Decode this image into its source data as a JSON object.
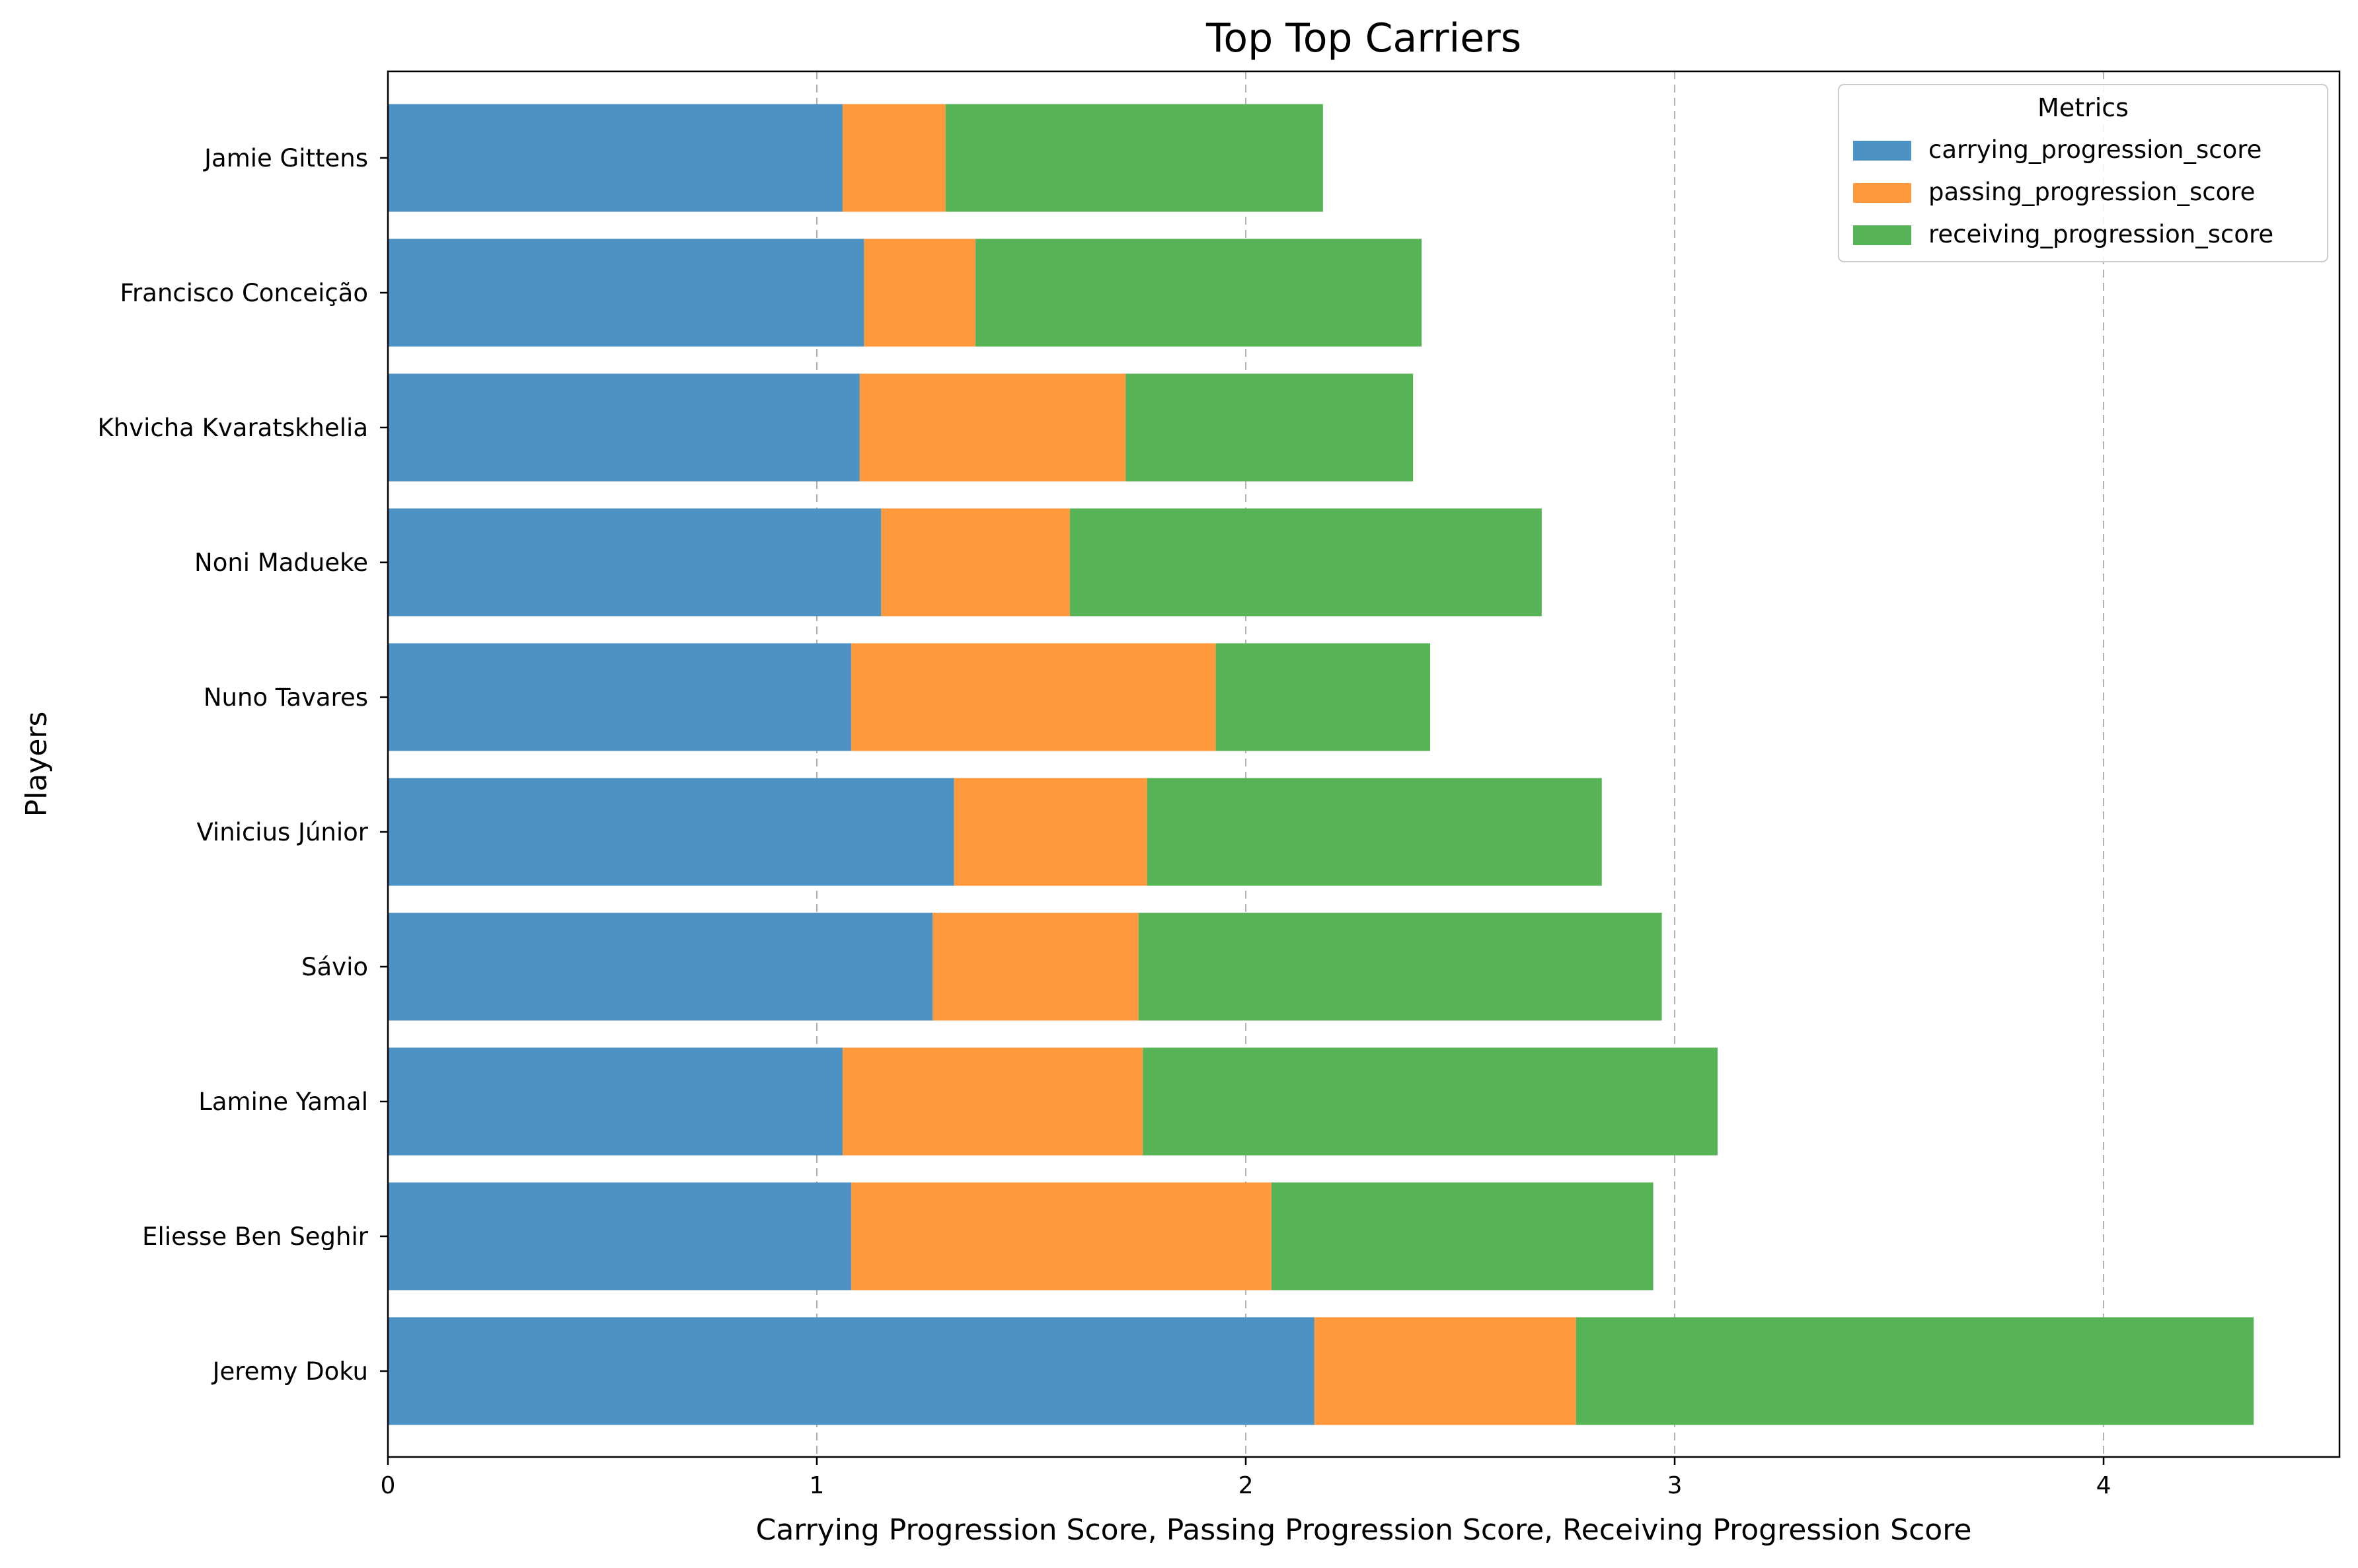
{
  "chart_data": {
    "type": "bar",
    "orientation": "horizontal",
    "stacked": true,
    "title": "Top Top Carriers",
    "xlabel": "Carrying Progression Score, Passing Progression Score, Receiving Progression Score",
    "ylabel": "Players",
    "xlim": [
      0,
      4.55
    ],
    "xticks": [
      0,
      1,
      2,
      3,
      4
    ],
    "grid": "x-dashed",
    "legend_title": "Metrics",
    "legend_position": "top-right",
    "categories": [
      "Jamie Gittens",
      "Francisco Conceição",
      "Khvicha Kvaratskhelia",
      "Noni Madueke",
      "Nuno Tavares",
      "Vinicius Júnior",
      "Sávio",
      "Lamine Yamal",
      "Eliesse Ben Seghir",
      "Jeremy Doku"
    ],
    "series": [
      {
        "name": "carrying_progression_score",
        "color": "#4c92c3",
        "values": [
          1.06,
          1.11,
          1.1,
          1.15,
          1.08,
          1.32,
          1.27,
          1.06,
          1.08,
          2.16
        ]
      },
      {
        "name": "passing_progression_score",
        "color": "#ff993e",
        "values": [
          0.24,
          0.26,
          0.62,
          0.44,
          0.85,
          0.45,
          0.48,
          0.7,
          0.98,
          0.61
        ]
      },
      {
        "name": "receiving_progression_score",
        "color": "#56b356",
        "values": [
          0.88,
          1.04,
          0.67,
          1.1,
          0.5,
          1.06,
          1.22,
          1.34,
          0.89,
          1.58
        ]
      }
    ]
  }
}
